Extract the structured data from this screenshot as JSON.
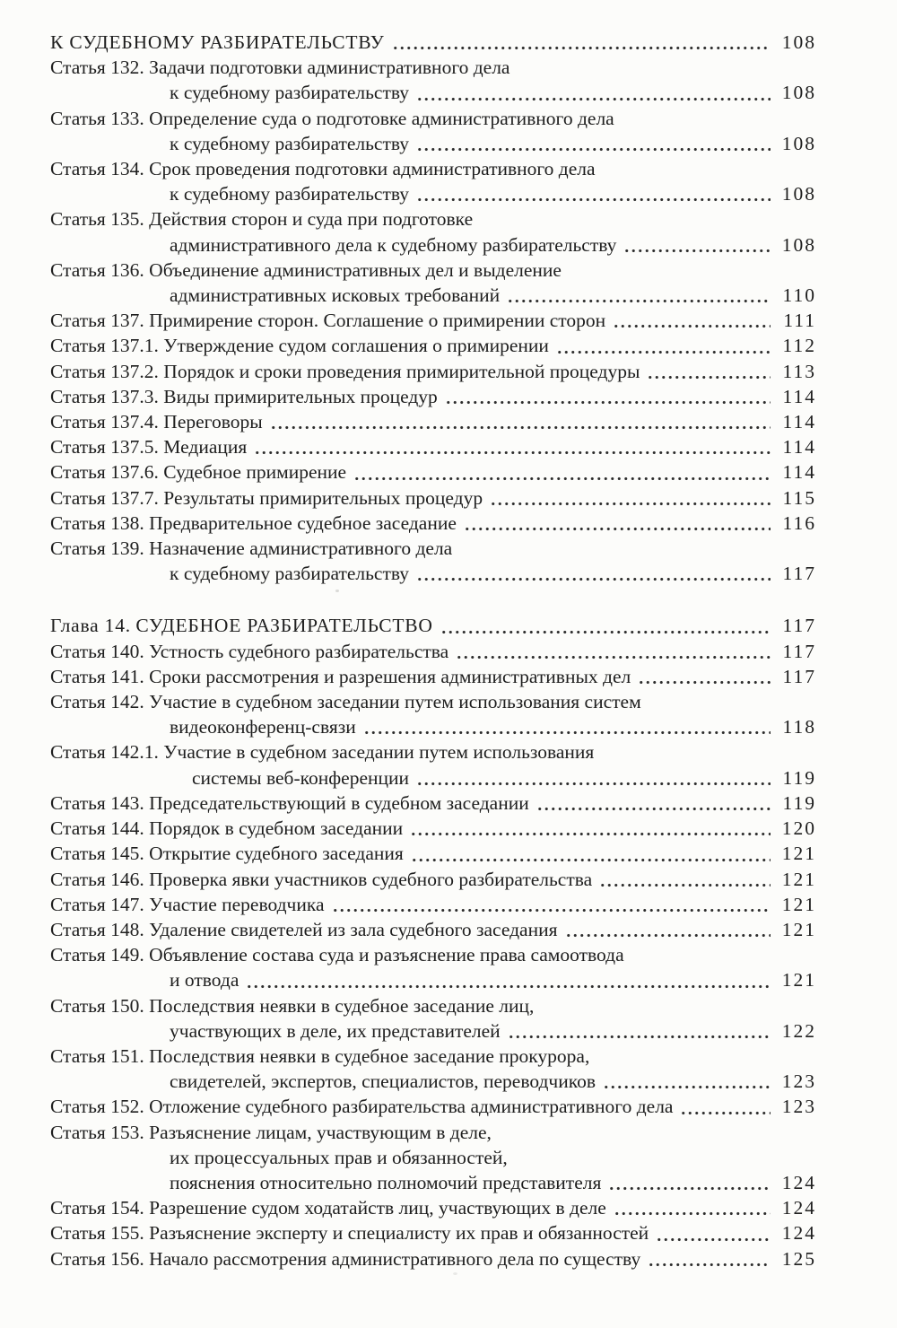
{
  "colors": {
    "ink": "#1e1e1e",
    "paper": "#fcfcfa"
  },
  "toc": {
    "entries": [
      {
        "kind": "chapter",
        "label": "",
        "lines": [
          "К СУДЕБНОМУ РАЗБИРАТЕЛЬСТВУ"
        ],
        "page": "108"
      },
      {
        "kind": "article",
        "label": "Статья 132.",
        "lines": [
          "Задачи подготовки административного дела",
          "к судебному разбирательству"
        ],
        "page": "108"
      },
      {
        "kind": "article",
        "label": "Статья 133.",
        "lines": [
          "Определение суда о подготовке административного дела",
          "к судебному разбирательству"
        ],
        "page": "108"
      },
      {
        "kind": "article",
        "label": "Статья 134.",
        "lines": [
          "Срок проведения подготовки административного дела",
          "к судебному разбирательству"
        ],
        "page": "108"
      },
      {
        "kind": "article",
        "label": "Статья 135.",
        "lines": [
          "Действия сторон и суда при подготовке",
          "административного дела к судебному разбирательству"
        ],
        "page": "108"
      },
      {
        "kind": "article",
        "label": "Статья 136.",
        "lines": [
          "Объединение административных дел и выделение",
          "административных исковых требований"
        ],
        "page": "110"
      },
      {
        "kind": "article",
        "label": "Статья 137.",
        "lines": [
          "Примирение сторон. Соглашение о примирении сторон"
        ],
        "page": "111"
      },
      {
        "kind": "article",
        "label": "Статья 137.1.",
        "lines": [
          "Утверждение судом соглашения о примирении"
        ],
        "page": "112"
      },
      {
        "kind": "article",
        "label": "Статья 137.2.",
        "lines": [
          "Порядок и сроки проведения примирительной процедуры"
        ],
        "page": "113"
      },
      {
        "kind": "article",
        "label": "Статья 137.3.",
        "lines": [
          "Виды примирительных процедур"
        ],
        "page": "114"
      },
      {
        "kind": "article",
        "label": "Статья 137.4.",
        "lines": [
          "Переговоры"
        ],
        "page": "114"
      },
      {
        "kind": "article",
        "label": "Статья 137.5.",
        "lines": [
          "Медиация"
        ],
        "page": "114"
      },
      {
        "kind": "article",
        "label": "Статья 137.6.",
        "lines": [
          "Судебное примирение"
        ],
        "page": "114"
      },
      {
        "kind": "article",
        "label": "Статья 137.7.",
        "lines": [
          "Результаты примирительных процедур"
        ],
        "page": "115"
      },
      {
        "kind": "article",
        "label": "Статья 138.",
        "lines": [
          "Предварительное судебное заседание"
        ],
        "page": "116"
      },
      {
        "kind": "article",
        "label": "Статья 139.",
        "lines": [
          "Назначение административного дела",
          "к судебному разбирательству"
        ],
        "page": "117"
      },
      {
        "kind": "chapter",
        "label": "Глава 14.",
        "lines": [
          "СУДЕБНОЕ РАЗБИРАТЕЛЬСТВО"
        ],
        "page": "117"
      },
      {
        "kind": "article",
        "label": "Статья 140.",
        "lines": [
          "Устность судебного разбирательства"
        ],
        "page": "117"
      },
      {
        "kind": "article",
        "label": "Статья 141.",
        "lines": [
          "Сроки рассмотрения и разрешения административных дел"
        ],
        "page": "117"
      },
      {
        "kind": "article",
        "label": "Статья 142.",
        "lines": [
          "Участие в судебном заседании путем использования систем",
          "видеоконференц-связи"
        ],
        "page": "118"
      },
      {
        "kind": "article",
        "label": "Статья 142.1.",
        "lines": [
          "Участие в судебном заседании путем использования",
          "системы веб-конференции"
        ],
        "page": "119"
      },
      {
        "kind": "article",
        "label": "Статья 143.",
        "lines": [
          "Председательствующий в судебном заседании"
        ],
        "page": "119"
      },
      {
        "kind": "article",
        "label": "Статья 144.",
        "lines": [
          "Порядок в судебном заседании"
        ],
        "page": "120"
      },
      {
        "kind": "article",
        "label": "Статья 145.",
        "lines": [
          "Открытие судебного заседания"
        ],
        "page": "121"
      },
      {
        "kind": "article",
        "label": "Статья 146.",
        "lines": [
          "Проверка явки участников судебного разбирательства"
        ],
        "page": "121"
      },
      {
        "kind": "article",
        "label": "Статья 147.",
        "lines": [
          "Участие переводчика"
        ],
        "page": "121"
      },
      {
        "kind": "article",
        "label": "Статья 148.",
        "lines": [
          "Удаление свидетелей из зала судебного заседания"
        ],
        "page": "121"
      },
      {
        "kind": "article",
        "label": "Статья 149.",
        "lines": [
          "Объявление состава суда и разъяснение права самоотвода",
          "и отвода"
        ],
        "page": "121"
      },
      {
        "kind": "article",
        "label": "Статья 150.",
        "lines": [
          "Последствия неявки в судебное заседание лиц,",
          "участвующих в деле, их представителей"
        ],
        "page": "122"
      },
      {
        "kind": "article",
        "label": "Статья 151.",
        "lines": [
          "Последствия неявки в судебное заседание прокурора,",
          "свидетелей, экспертов, специалистов, переводчиков"
        ],
        "page": "123"
      },
      {
        "kind": "article",
        "label": "Статья 152.",
        "lines": [
          "Отложение судебного разбирательства административного дела"
        ],
        "page": "123"
      },
      {
        "kind": "article",
        "label": "Статья 153.",
        "lines": [
          "Разъяснение лицам, участвующим в деле,",
          "их процессуальных прав и обязанностей,",
          "пояснения относительно полномочий представителя"
        ],
        "page": "124"
      },
      {
        "kind": "article",
        "label": "Статья 154.",
        "lines": [
          "Разрешение судом ходатайств лиц, участвующих в деле"
        ],
        "page": "124"
      },
      {
        "kind": "article",
        "label": "Статья 155.",
        "lines": [
          "Разъяснение эксперту и специалисту их прав и обязанностей"
        ],
        "page": "124"
      },
      {
        "kind": "article",
        "label": "Статья 156.",
        "lines": [
          "Начало рассмотрения административного дела по существу"
        ],
        "page": "125"
      }
    ]
  }
}
